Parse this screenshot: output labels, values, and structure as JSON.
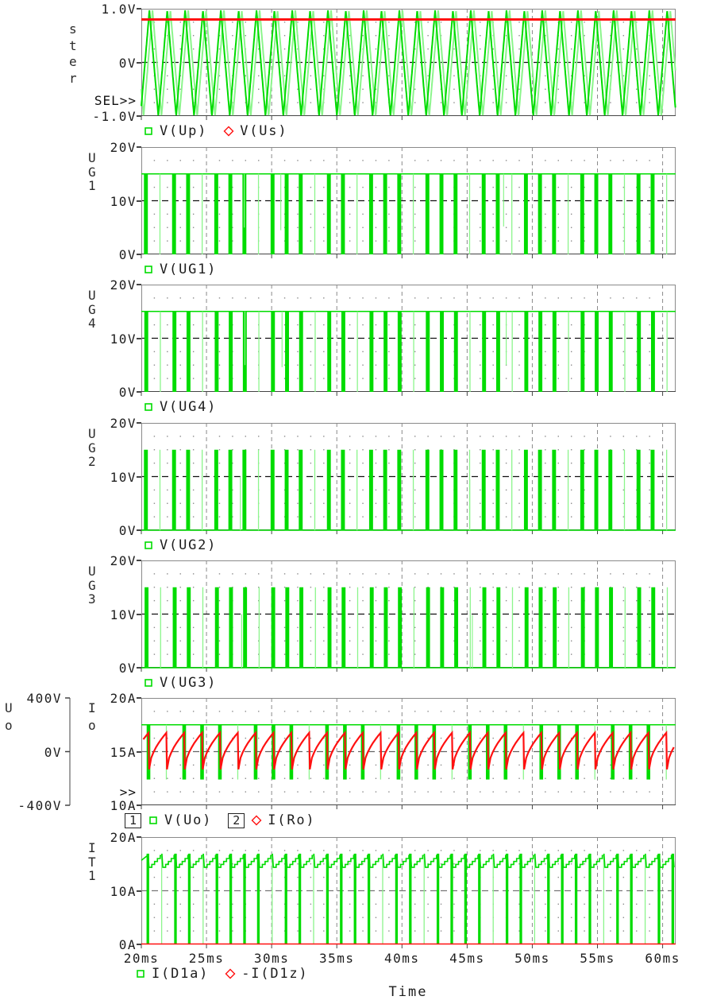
{
  "colors": {
    "background": "#ffffff",
    "trace_green": "#00DC00",
    "trace_green_light": "#8CF58C",
    "trace_red": "#FF1010",
    "frame": "#8a8a8a",
    "axis_dark": "#444444",
    "grid_dot": "#8a8a8a",
    "grid_major_v": "#8a8a8a",
    "text": "#1d1d1d"
  },
  "chart_data": {
    "type": "line",
    "x_axis": {
      "label": "Time",
      "unit": "ms",
      "range": [
        20,
        61
      ],
      "tick_step": 5,
      "ticks": [
        "20ms",
        "25ms",
        "30ms",
        "35ms",
        "40ms",
        "45ms",
        "50ms",
        "55ms",
        "60ms"
      ],
      "minor_step": 1
    },
    "plots": [
      {
        "id": "ster",
        "ylabel": "ster",
        "y_range": [
          -1,
          1
        ],
        "y_ticks": [
          {
            "v": 1,
            "label": "1.0V"
          },
          {
            "v": 0,
            "label": "0V"
          },
          {
            "v": -1,
            "label": "-1.0V"
          }
        ],
        "minor_rows": [
          -0.75,
          -0.5,
          -0.25,
          0.25,
          0.5,
          0.75
        ],
        "mid_line": 0,
        "mid_color": "#111111",
        "corner_label": "SEL>>",
        "series": [
          {
            "name": "V(Up)",
            "marker": "square",
            "color": "green",
            "kind": "triangle",
            "min": -1.0,
            "max": 0.97,
            "period_ms": 1.37,
            "first_peak_ms": 20.62
          },
          {
            "name": "V(Us)",
            "marker": "diamond",
            "color": "red",
            "kind": "constant",
            "value": 0.8,
            "width": 3
          }
        ]
      },
      {
        "id": "UG1",
        "ylabel": "UG1",
        "y_range": [
          0,
          20
        ],
        "y_ticks": [
          {
            "v": 20,
            "label": "20V"
          },
          {
            "v": 10,
            "label": "10V"
          },
          {
            "v": 0,
            "label": "0V"
          }
        ],
        "minor_rows": [
          2.5,
          5,
          7.5,
          12.5,
          15,
          17.5
        ],
        "mid_line": 10,
        "mid_color": "#111111",
        "series": [
          {
            "name": "V(UG1)",
            "marker": "square",
            "color": "green",
            "kind": "pwm_high",
            "high": 15,
            "low": 0,
            "period_ms": 1.08,
            "first_center_ms": 20.35,
            "wide_ms": 0.3,
            "pattern": "WTWWTWWWTWW",
            "partials": [
              {
                "t": 27.9,
                "level": 5
              },
              {
                "t": 30.7,
                "level": 4.5
              },
              {
                "t": 47.8,
                "level": 5.2
              }
            ]
          }
        ]
      },
      {
        "id": "UG4",
        "ylabel": "UG4",
        "y_range": [
          0,
          20
        ],
        "y_ticks": [
          {
            "v": 20,
            "label": "20V"
          },
          {
            "v": 10,
            "label": "10V"
          },
          {
            "v": 0,
            "label": "0V"
          }
        ],
        "minor_rows": [
          2.5,
          5,
          7.5,
          12.5,
          15,
          17.5
        ],
        "mid_line": 10,
        "mid_color": "#111111",
        "series": [
          {
            "name": "V(UG4)",
            "marker": "square",
            "color": "green",
            "kind": "pwm_high",
            "high": 15,
            "low": 0,
            "period_ms": 1.08,
            "first_center_ms": 20.38,
            "wide_ms": 0.3,
            "pattern": "WTWWTWWWTWW",
            "partials": [
              {
                "t": 27.95,
                "level": 5
              },
              {
                "t": 30.8,
                "level": 4.6
              },
              {
                "t": 48.0,
                "level": 5.0
              }
            ]
          }
        ]
      },
      {
        "id": "UG2",
        "ylabel": "UG2",
        "y_range": [
          0,
          20
        ],
        "y_ticks": [
          {
            "v": 20,
            "label": "20V"
          },
          {
            "v": 10,
            "label": "10V"
          },
          {
            "v": 0,
            "label": "0V"
          }
        ],
        "minor_rows": [
          2.5,
          5,
          7.5,
          12.5,
          15,
          17.5
        ],
        "mid_line": 10,
        "mid_color": "#111111",
        "series": [
          {
            "name": "V(UG2)",
            "marker": "square",
            "color": "green",
            "kind": "pwm_low",
            "high": 15,
            "low": 0,
            "period_ms": 1.08,
            "first_center_ms": 20.35,
            "wide_ms": 0.3,
            "pattern": "WTWWTWWWTWW",
            "partials": [
              {
                "t": 27.6,
                "level": 10
              },
              {
                "t": 45.2,
                "level": 9.5
              }
            ]
          }
        ]
      },
      {
        "id": "UG3",
        "ylabel": "UG3",
        "y_range": [
          0,
          20
        ],
        "y_ticks": [
          {
            "v": 20,
            "label": "20V"
          },
          {
            "v": 10,
            "label": "10V"
          },
          {
            "v": 0,
            "label": "0V"
          }
        ],
        "minor_rows": [
          2.5,
          5,
          7.5,
          12.5,
          15,
          17.5
        ],
        "mid_line": 10,
        "mid_color": "#111111",
        "series": [
          {
            "name": "V(UG3)",
            "marker": "square",
            "color": "green",
            "kind": "pwm_low",
            "high": 15,
            "low": 0,
            "period_ms": 1.08,
            "first_center_ms": 20.4,
            "wide_ms": 0.3,
            "pattern": "WTWWTWWWTWW",
            "partials": [
              {
                "t": 27.7,
                "level": 10
              },
              {
                "t": 45.4,
                "level": 9.8
              }
            ]
          }
        ]
      },
      {
        "id": "UoIo",
        "ylabel": "Io",
        "y_range": [
          10,
          20
        ],
        "y_ticks": [
          {
            "v": 20,
            "label": "20A"
          },
          {
            "v": 15,
            "label": "15A"
          },
          {
            "v": 10,
            "label": "10A"
          }
        ],
        "minor_rows": [
          11.25,
          12.5,
          13.75,
          16.25,
          17.5,
          18.75
        ],
        "mid_line": 15,
        "mid_color": "#666666",
        "corner_label": ">>",
        "outer_axis": {
          "ylabel": "Uo",
          "ticks": [
            {
              "frac": 1,
              "label": "400V"
            },
            {
              "frac": 0.5,
              "label": "0V"
            },
            {
              "frac": 0,
              "label": "-400V"
            }
          ]
        },
        "series": [
          {
            "name": "V(Uo)",
            "marker": "square",
            "color": "green",
            "legend_box": "1",
            "kind": "pwm_band",
            "high": 17.5,
            "low": 12.4,
            "period_ms": 1.37,
            "first_center_ms": 20.55,
            "wide_ms": 0.28,
            "pattern": "WTWWWTWW"
          },
          {
            "name": "I(Ro)",
            "marker": "diamond",
            "color": "red",
            "legend_box": "2",
            "kind": "sawtooth",
            "min": 13.35,
            "max": 16.75,
            "period_ms": 1.37,
            "first_drop_ms": 20.55
          }
        ]
      },
      {
        "id": "IT1",
        "ylabel": "IT1",
        "y_range": [
          0,
          20
        ],
        "y_ticks": [
          {
            "v": 20,
            "label": "20A"
          },
          {
            "v": 10,
            "label": "10A"
          },
          {
            "v": 0,
            "label": "0A"
          }
        ],
        "minor_rows": [
          2.5,
          5,
          7.5,
          12.5,
          15,
          17.5
        ],
        "mid_line": 10,
        "mid_color": "#777777",
        "show_x_labels": true,
        "series": [
          {
            "name": "I(D1a)",
            "marker": "square",
            "color": "green",
            "kind": "step_saw",
            "base": 14.35,
            "top": 16.55,
            "spike": 16.9,
            "period_ms": 1.06,
            "first_drop_ms": 20.5,
            "wide_ms": 0.2,
            "pattern": "WTWWTWWW"
          },
          {
            "name": "-I(D1z)",
            "marker": "diamond",
            "color": "red",
            "kind": "constant",
            "value": 0.07,
            "width": 1.5
          }
        ]
      }
    ]
  }
}
